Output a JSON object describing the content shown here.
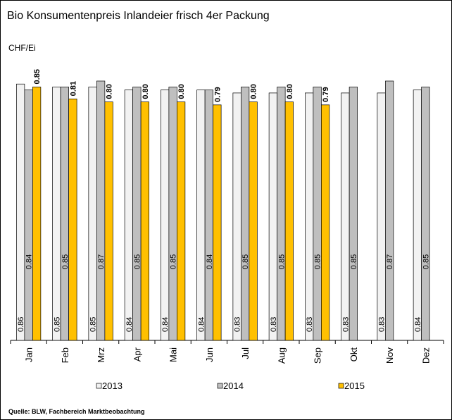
{
  "chart_data": {
    "type": "bar",
    "title": "Bio Konsumentenpreis Inlandeier frisch 4er Packung",
    "y_label": "CHF/Ei",
    "source": "Quelle: BLW, Fachbereich Marktbeobachtung",
    "categories": [
      "Jan",
      "Feb",
      "Mrz",
      "Apr",
      "Mai",
      "Jun",
      "Jul",
      "Aug",
      "Sep",
      "Okt",
      "Nov",
      "Dez"
    ],
    "ylim": [
      0,
      1
    ],
    "series": [
      {
        "name": "2013",
        "color": "#f2f2f2",
        "values": [
          0.86,
          0.85,
          0.85,
          0.84,
          0.84,
          0.84,
          0.83,
          0.83,
          0.83,
          0.83,
          0.83,
          0.84
        ],
        "value_labels": [
          "0.86",
          "0.85",
          "0.85",
          "0.84",
          "0.84",
          "0.84",
          "0.83",
          "0.83",
          "0.83",
          "0.83",
          "0.83",
          "0.84"
        ]
      },
      {
        "name": "2014",
        "color": "#bfbfbf",
        "values": [
          0.84,
          0.85,
          0.87,
          0.85,
          0.85,
          0.84,
          0.85,
          0.85,
          0.85,
          0.85,
          0.87,
          0.85
        ],
        "value_labels": [
          "0.84",
          "0.85",
          "0.87",
          "0.85",
          "0.85",
          "0.84",
          "0.85",
          "0.85",
          "0.85",
          "0.85",
          "0.87",
          "0.85"
        ]
      },
      {
        "name": "2015",
        "color": "#ffc000",
        "values": [
          0.85,
          0.81,
          0.8,
          0.8,
          0.8,
          0.79,
          0.8,
          0.8,
          0.79,
          null,
          null,
          null
        ],
        "value_labels": [
          "0.85",
          "0.81",
          "0.80",
          "0.80",
          "0.80",
          "0.79",
          "0.80",
          "0.80",
          "0.79",
          null,
          null,
          null
        ]
      }
    ]
  }
}
